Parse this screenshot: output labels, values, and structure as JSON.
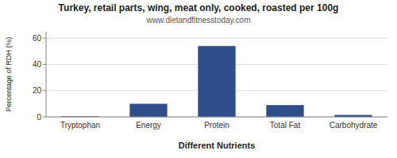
{
  "chart_data": {
    "type": "bar",
    "title": "Turkey, retail parts, wing, meat only, cooked, roasted per 100g",
    "subtitle": "www.dietandfitnesstoday.com",
    "xlabel": "Different Nutrients",
    "ylabel": "Percentage of RDH (%)",
    "categories": [
      "Tryptophan",
      "Energy",
      "Protein",
      "Total Fat",
      "Carbohydrate"
    ],
    "values": [
      0.5,
      10,
      54,
      9,
      1.5
    ],
    "color": "#2e4d8a",
    "ylim": [
      0,
      65
    ],
    "yticks": [
      0,
      20,
      40,
      60
    ],
    "grid": true
  }
}
